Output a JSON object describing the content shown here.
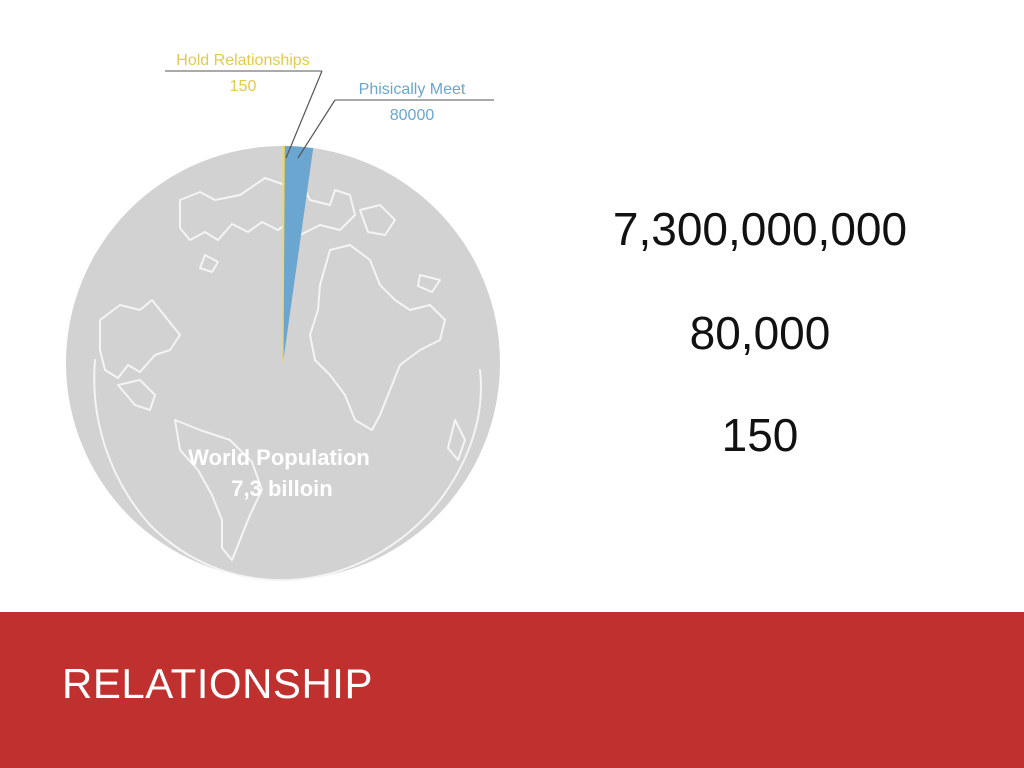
{
  "chart_data": {
    "type": "pie",
    "slices": [
      {
        "label": "World Population",
        "value": 7300000000,
        "color": "#d2d2d2"
      },
      {
        "label": "Phisically Meet",
        "value": 80000,
        "color": "#6aa6cf"
      },
      {
        "label": "Hold Relationships",
        "value": 150,
        "color": "#f2d55c"
      }
    ],
    "labels": {
      "center_line1": "World Population",
      "center_line2": "7,3 billoin",
      "phisically_meet_name": "Phisically Meet",
      "phisically_meet_value": "80000",
      "hold_relationships_name": "Hold Relationships",
      "hold_relationships_value": "150"
    }
  },
  "stats": {
    "world_population": "7,300,000,000",
    "phisically_meet": "80,000",
    "hold_relationships": "150"
  },
  "footer": {
    "title": "RELATIONSHIP",
    "background_color": "#c0302f"
  }
}
